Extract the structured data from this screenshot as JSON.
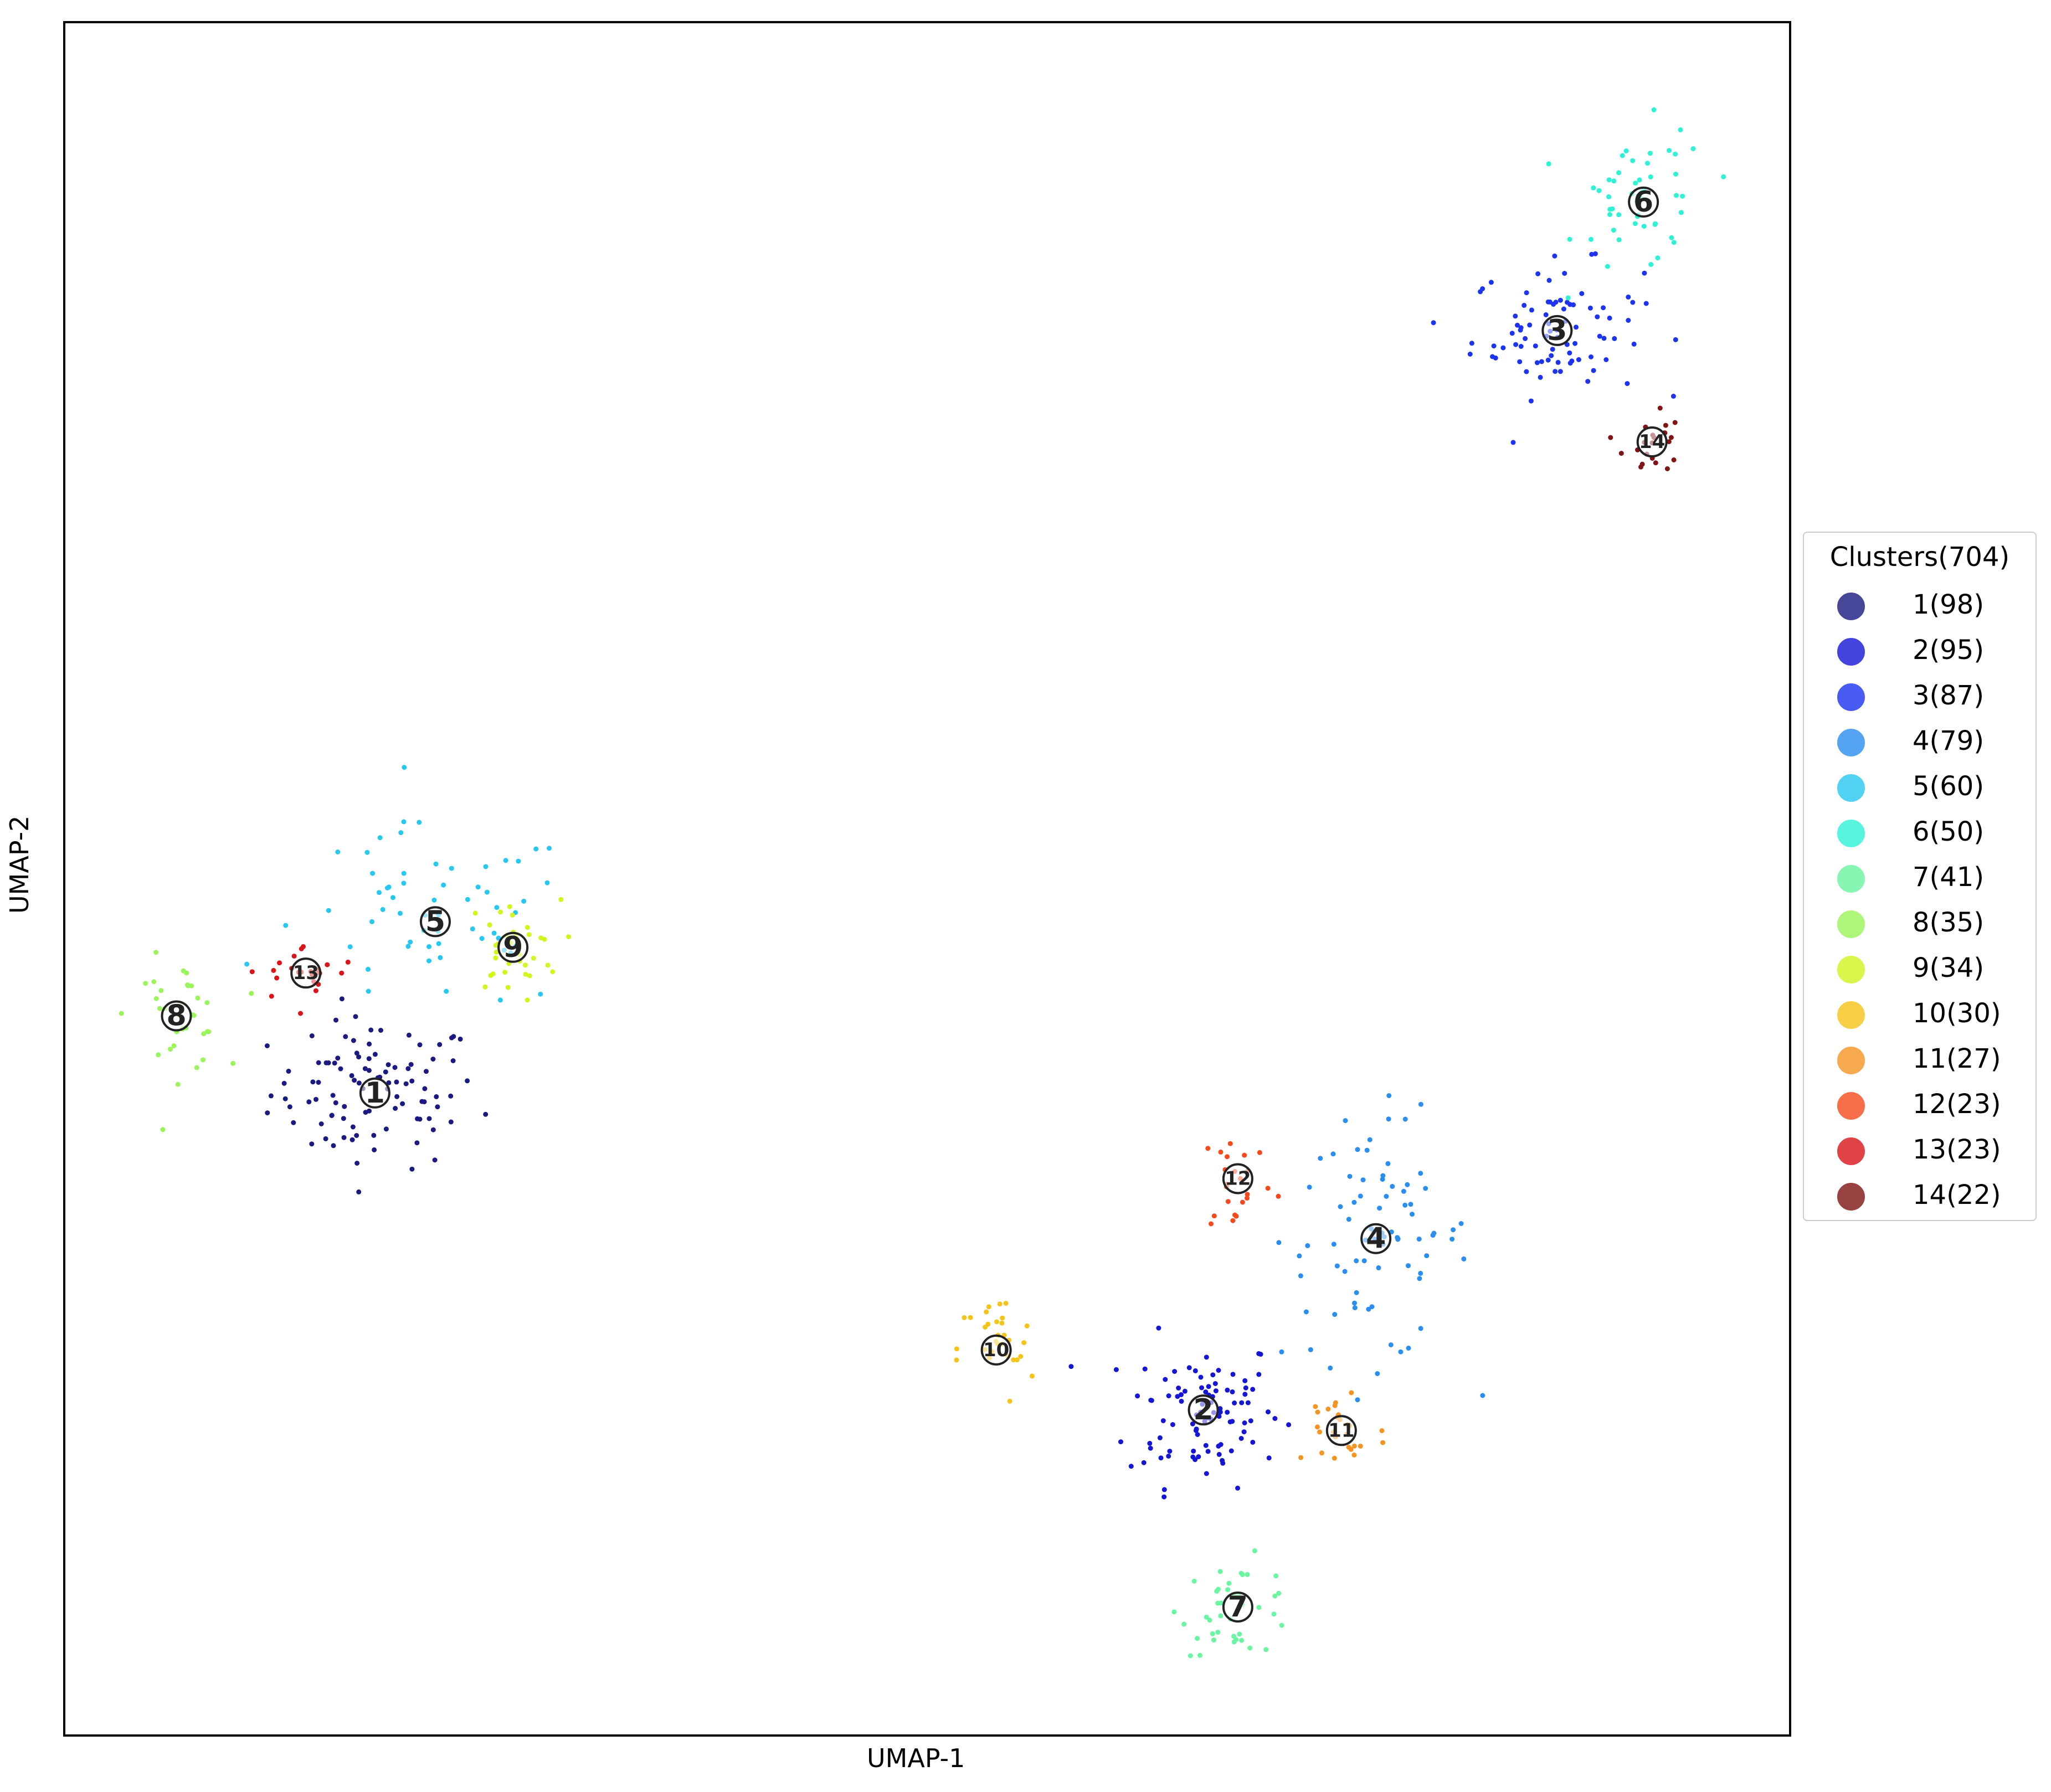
{
  "chart_data": {
    "type": "scatter",
    "title": "",
    "xlabel": "UMAP-1",
    "ylabel": "UMAP-2",
    "xlim": [
      0,
      100
    ],
    "ylim": [
      0,
      100
    ],
    "ticks": false,
    "grid": false,
    "legend_position": "right-outside",
    "legend_title": "Clusters(704)",
    "series": [
      {
        "name": "1(98)",
        "id": "1",
        "color": "#1a1a80",
        "n": 98,
        "center": [
          18.0,
          37.5
        ],
        "spread": [
          5.5,
          4.0
        ]
      },
      {
        "name": "2(95)",
        "id": "2",
        "color": "#1515d6",
        "n": 95,
        "center": [
          66.0,
          19.0
        ],
        "spread": [
          4.0,
          4.0
        ]
      },
      {
        "name": "3(87)",
        "id": "3",
        "color": "#1c33f0",
        "n": 87,
        "center": [
          86.5,
          82.0
        ],
        "spread": [
          4.5,
          3.5
        ]
      },
      {
        "name": "4(79)",
        "id": "4",
        "color": "#2a8ef0",
        "n": 79,
        "center": [
          76.0,
          29.0
        ],
        "spread": [
          5.0,
          6.5
        ]
      },
      {
        "name": "5(60)",
        "id": "5",
        "color": "#27c8f0",
        "n": 60,
        "center": [
          21.5,
          47.5
        ],
        "spread": [
          7.5,
          5.0
        ]
      },
      {
        "name": "6(50)",
        "id": "6",
        "color": "#2ef2d6",
        "n": 50,
        "center": [
          91.5,
          89.5
        ],
        "spread": [
          3.5,
          4.0
        ]
      },
      {
        "name": "7(41)",
        "id": "7",
        "color": "#6af5a0",
        "n": 41,
        "center": [
          68.0,
          7.5
        ],
        "spread": [
          3.0,
          2.5
        ]
      },
      {
        "name": "8(35)",
        "id": "8",
        "color": "#99f55a",
        "n": 35,
        "center": [
          6.5,
          42.0
        ],
        "spread": [
          2.5,
          3.0
        ]
      },
      {
        "name": "9(34)",
        "id": "9",
        "color": "#d2f51d",
        "n": 34,
        "center": [
          26.0,
          46.0
        ],
        "spread": [
          2.5,
          2.5
        ]
      },
      {
        "name": "10(30)",
        "id": "10",
        "color": "#f5c419",
        "n": 30,
        "center": [
          54.0,
          22.5
        ],
        "spread": [
          2.0,
          3.0
        ]
      },
      {
        "name": "11(27)",
        "id": "11",
        "color": "#f59421",
        "n": 27,
        "center": [
          74.0,
          17.8
        ],
        "spread": [
          2.5,
          3.0
        ]
      },
      {
        "name": "12(23)",
        "id": "12",
        "color": "#f54a1d",
        "n": 23,
        "center": [
          68.0,
          32.5
        ],
        "spread": [
          2.0,
          3.0
        ]
      },
      {
        "name": "13(23)",
        "id": "13",
        "color": "#d9141a",
        "n": 23,
        "center": [
          14.0,
          44.5
        ],
        "spread": [
          3.0,
          1.5
        ]
      },
      {
        "name": "14(22)",
        "id": "14",
        "color": "#801313",
        "n": 22,
        "center": [
          92.0,
          75.5
        ],
        "spread": [
          1.5,
          2.0
        ]
      }
    ]
  }
}
